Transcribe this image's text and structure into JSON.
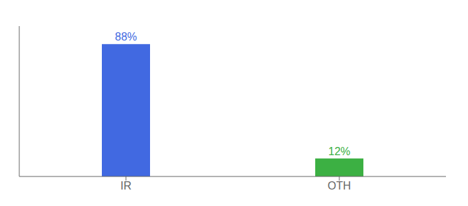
{
  "chart_data": {
    "type": "bar",
    "categories": [
      "IR",
      "OTH"
    ],
    "values": [
      88,
      12
    ],
    "value_labels": [
      "88%",
      "12%"
    ],
    "data_labels": true,
    "colors": [
      "#4169e1",
      "#3cb043"
    ],
    "ylim": [
      0,
      100
    ],
    "tick_labels": "x",
    "grid": false
  }
}
